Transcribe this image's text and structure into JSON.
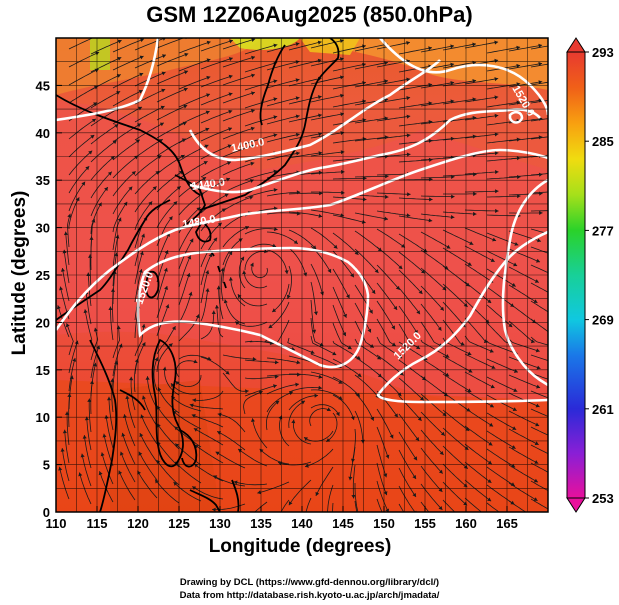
{
  "figure": {
    "title": "GSM 12Z06Aug2025 (850.0hPa)",
    "xlabel": "Longitude (degrees)",
    "ylabel": "Latitude  (degrees)",
    "credit_line1": "Drawing by DCL (https://www.gfd-dennou.org/library/dcl/)",
    "credit_line2": "Data from http://database.rish.kyoto-u.ac.jp/arch/jmadata/"
  },
  "map": {
    "lon_range": [
      110,
      170
    ],
    "lat_range": [
      0,
      50
    ],
    "lon_ticks": [
      110,
      115,
      120,
      125,
      130,
      135,
      140,
      145,
      150,
      155,
      160,
      165
    ],
    "lat_ticks": [
      0,
      5,
      10,
      15,
      20,
      25,
      30,
      35,
      40,
      45
    ],
    "grid": true,
    "field": "temperature shading with streamlines and geopotential height contours",
    "contour_labels": [
      "1400.0",
      "1440.0",
      "1480.0",
      "1520.0",
      "1520.0",
      "1520.0"
    ],
    "vortex_centers": [
      {
        "lon": 135,
        "lat": 26
      },
      {
        "lon": 125,
        "lat": 15
      },
      {
        "lon": 143,
        "lat": 10
      }
    ]
  },
  "colorbar": {
    "min": 253,
    "max": 293,
    "tick_labels": [
      "293",
      "285",
      "277",
      "269",
      "261",
      "253"
    ],
    "tick_values": [
      293,
      285,
      277,
      269,
      261,
      253
    ],
    "colors": [
      "#e8109c",
      "#8a1fd6",
      "#2a2ad8",
      "#1a78e8",
      "#10c8e0",
      "#18d098",
      "#2ad22a",
      "#a6e01a",
      "#f0dc10",
      "#f8a010",
      "#f06018",
      "#e83a30"
    ]
  }
}
